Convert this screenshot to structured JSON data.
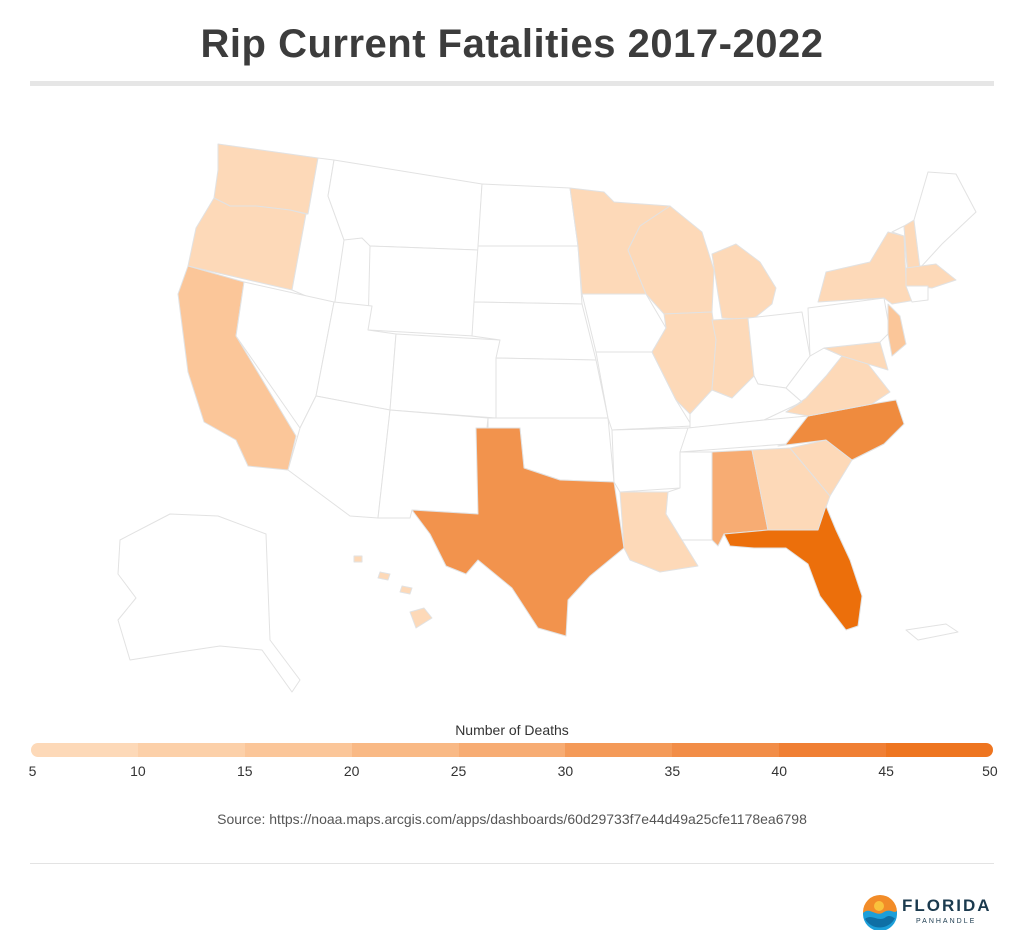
{
  "title": "Rip Current Fatalities 2017-2022",
  "legend": {
    "title": "Number of Deaths",
    "ticks": [
      "5",
      "10",
      "15",
      "20",
      "25",
      "30",
      "35",
      "40",
      "45",
      "50"
    ],
    "colors": [
      "#fdd9b8",
      "#fcd0a9",
      "#fbc699",
      "#f9b985",
      "#f7ac73",
      "#f49a58",
      "#f28d47",
      "#f07f34",
      "#ee7520"
    ]
  },
  "source": "Source: https://noaa.maps.arcgis.com/apps/dashboards/60d29733f7e44d49a25cfe1178ea6798",
  "brand": {
    "name": "FLORIDA",
    "sub": "PANHANDLE"
  },
  "map_colors": {
    "none": "#ffffff",
    "border": "#e2e2e2",
    "low": "#fdd9b8",
    "mid_low": "#fbc699",
    "mid": "#f7ac73",
    "high": "#f2934d",
    "very_high": "#ef8b3e",
    "max": "#ec6f0b"
  }
}
